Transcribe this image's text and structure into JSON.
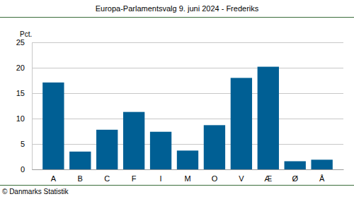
{
  "chart_data": {
    "type": "bar",
    "title": "Europa-Parlamentsvalg 9. juni 2024 - Frederiks",
    "ylabel": "Pct.",
    "annotations": [
      "© Danmarks Statistik"
    ],
    "categories": [
      "A",
      "B",
      "C",
      "F",
      "I",
      "M",
      "O",
      "V",
      "Æ",
      "Ø",
      "Å"
    ],
    "values": [
      17.1,
      3.5,
      7.8,
      11.3,
      7.4,
      3.7,
      8.7,
      18.0,
      20.2,
      1.6,
      1.9
    ],
    "color": "#005f94",
    "ylim": [
      0,
      25
    ],
    "yticks": [
      0,
      5,
      10,
      15,
      20,
      25
    ],
    "grid": true
  }
}
